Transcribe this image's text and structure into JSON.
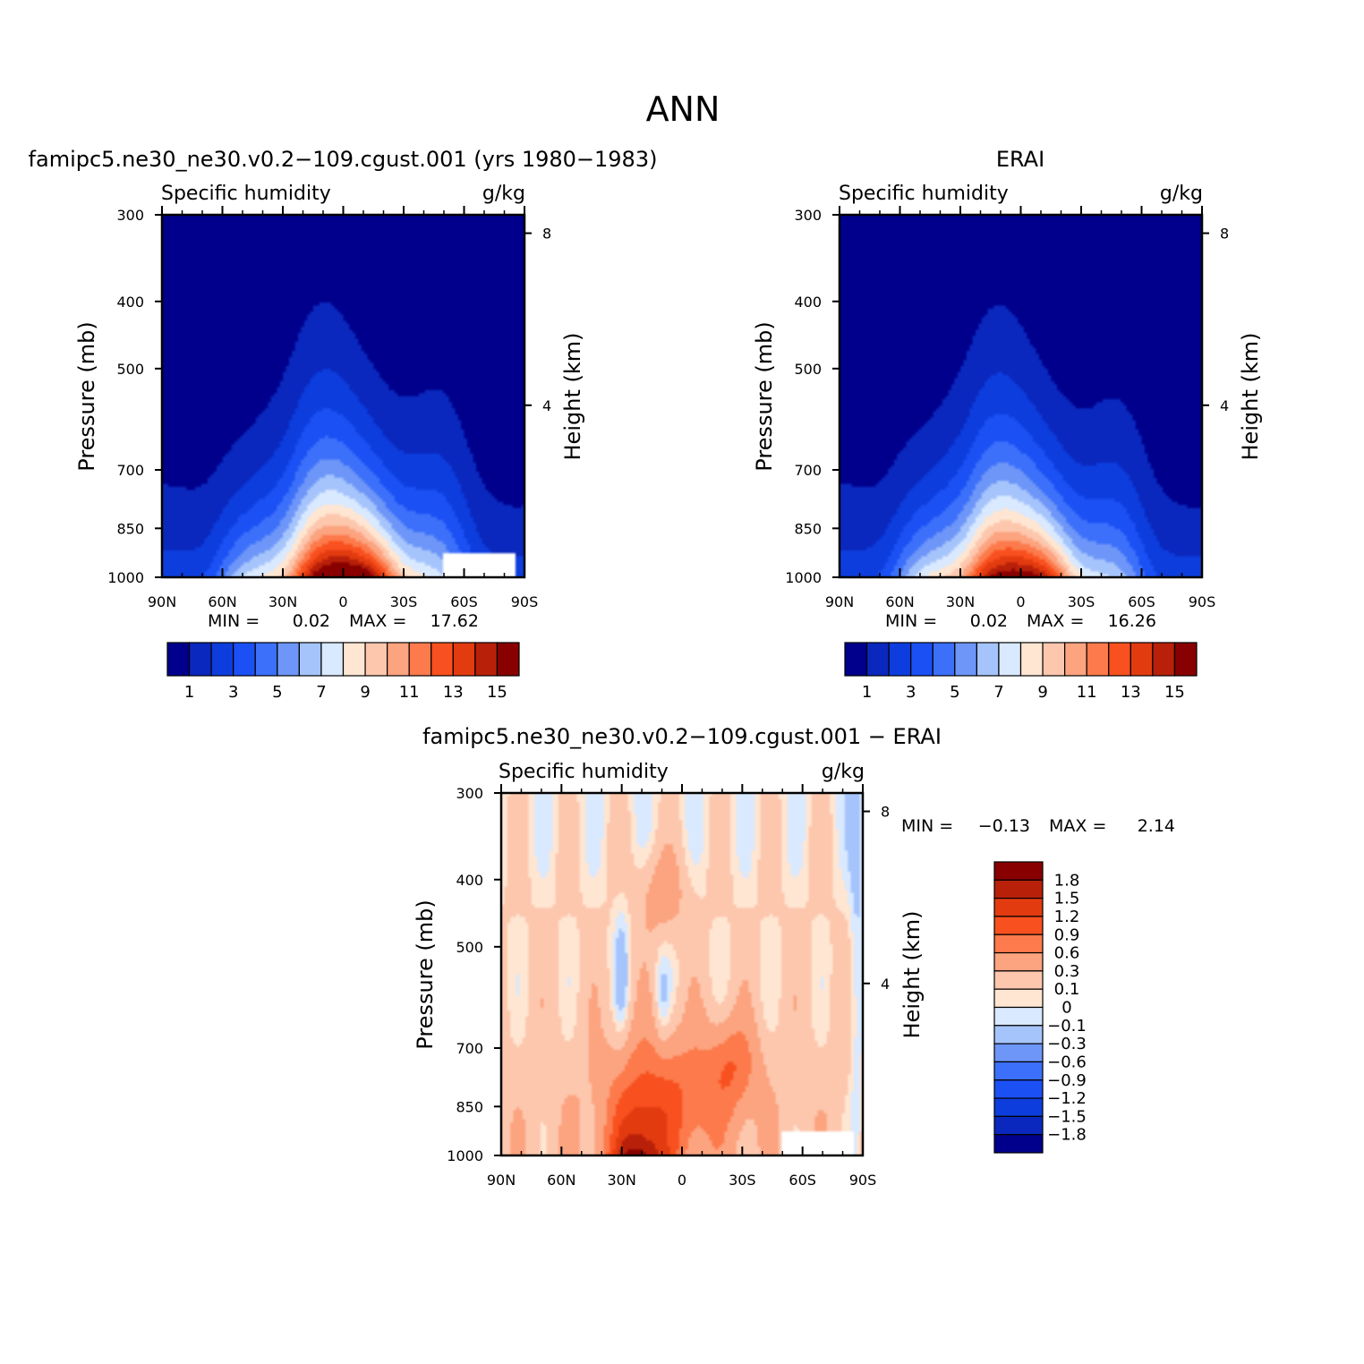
{
  "figure": {
    "title": "ANN"
  },
  "chart_data": [
    {
      "type": "contour",
      "panel_title": "famipc5.ne30_ne30.v0.2−109.cgust.001 (yrs 1980−1983)",
      "left_label": "Specific humidity",
      "right_label": "g/kg",
      "ylabel": "Pressure (mb)",
      "ylabel_right": "Height (km)",
      "x_ticks": [
        "90N",
        "60N",
        "30N",
        "0",
        "30S",
        "60S",
        "90S"
      ],
      "y_ticks": [
        "300",
        "400",
        "500",
        "700",
        "850",
        "1000"
      ],
      "y_ticks_right": [
        "8",
        "4"
      ],
      "xlim": [
        90,
        -90
      ],
      "ylim": [
        1000,
        300
      ],
      "y_scale": "log",
      "peak": {
        "lat": 0,
        "value": 17.62
      },
      "missing_region": {
        "lat": [
          -50,
          -85
        ],
        "pressure": [
          920,
          1000
        ]
      },
      "min_label": "MIN =",
      "min_value": "0.02",
      "max_label": "MAX =",
      "max_value": "17.62",
      "colorbar_labels": [
        "1",
        "3",
        "5",
        "7",
        "9",
        "11",
        "13",
        "15"
      ],
      "colorbar_levels": [
        1,
        2,
        3,
        4,
        5,
        6,
        7,
        8,
        9,
        10,
        11,
        12,
        13,
        14,
        15
      ],
      "colorbar_colors": [
        "#00008c",
        "#0a28bd",
        "#0d3ddd",
        "#1b50f5",
        "#3c70fa",
        "#6d96f8",
        "#a6c4fc",
        "#d9e9ff",
        "#ffe6d2",
        "#fdc7ae",
        "#fca37f",
        "#fc7a4b",
        "#f9501f",
        "#e33b10",
        "#b8200a",
        "#880000"
      ]
    },
    {
      "type": "contour",
      "panel_title": "ERAI",
      "left_label": "Specific humidity",
      "right_label": "g/kg",
      "ylabel": "Pressure (mb)",
      "ylabel_right": "Height (km)",
      "x_ticks": [
        "90N",
        "60N",
        "30N",
        "0",
        "30S",
        "60S",
        "90S"
      ],
      "y_ticks": [
        "300",
        "400",
        "500",
        "700",
        "850",
        "1000"
      ],
      "y_ticks_right": [
        "8",
        "4"
      ],
      "xlim": [
        90,
        -90
      ],
      "ylim": [
        1000,
        300
      ],
      "y_scale": "log",
      "peak": {
        "lat": 3,
        "value": 16.26
      },
      "min_label": "MIN =",
      "min_value": "0.02",
      "max_label": "MAX =",
      "max_value": "16.26",
      "colorbar_labels": [
        "1",
        "3",
        "5",
        "7",
        "9",
        "11",
        "13",
        "15"
      ],
      "colorbar_levels": [
        1,
        2,
        3,
        4,
        5,
        6,
        7,
        8,
        9,
        10,
        11,
        12,
        13,
        14,
        15
      ],
      "colorbar_colors": [
        "#00008c",
        "#0a28bd",
        "#0d3ddd",
        "#1b50f5",
        "#3c70fa",
        "#6d96f8",
        "#a6c4fc",
        "#d9e9ff",
        "#ffe6d2",
        "#fdc7ae",
        "#fca37f",
        "#fc7a4b",
        "#f9501f",
        "#e33b10",
        "#b8200a",
        "#880000"
      ]
    },
    {
      "type": "contour",
      "panel_title": "famipc5.ne30_ne30.v0.2−109.cgust.001 − ERAI",
      "left_label": "Specific humidity",
      "right_label": "g/kg",
      "ylabel": "Pressure (mb)",
      "ylabel_right": "Height (km)",
      "x_ticks": [
        "90N",
        "60N",
        "30N",
        "0",
        "30S",
        "60S",
        "90S"
      ],
      "y_ticks": [
        "300",
        "400",
        "500",
        "700",
        "850",
        "1000"
      ],
      "y_ticks_right": [
        "8",
        "4"
      ],
      "xlim": [
        90,
        -90
      ],
      "ylim": [
        1000,
        300
      ],
      "y_scale": "log",
      "missing_region": {
        "lat": [
          -50,
          -85
        ],
        "pressure": [
          920,
          1000
        ]
      },
      "min_label": "MIN =",
      "min_value": "−0.13",
      "max_label": "MAX =",
      "max_value": "2.14",
      "colorbar_labels": [
        "1.8",
        "1.5",
        "1.2",
        "0.9",
        "0.6",
        "0.3",
        "0.1",
        "0",
        "−0.1",
        "−0.3",
        "−0.6",
        "−0.9",
        "−1.2",
        "−1.5",
        "−1.8"
      ],
      "colorbar_colors": [
        "#880000",
        "#b8200a",
        "#e33b10",
        "#f9501f",
        "#fc7a4b",
        "#fca37f",
        "#fdc7ae",
        "#ffe6d2",
        "#d9e9ff",
        "#a6c4fc",
        "#6d96f8",
        "#3c70fa",
        "#1b50f5",
        "#0d3ddd",
        "#0a28bd",
        "#00008c"
      ]
    }
  ]
}
